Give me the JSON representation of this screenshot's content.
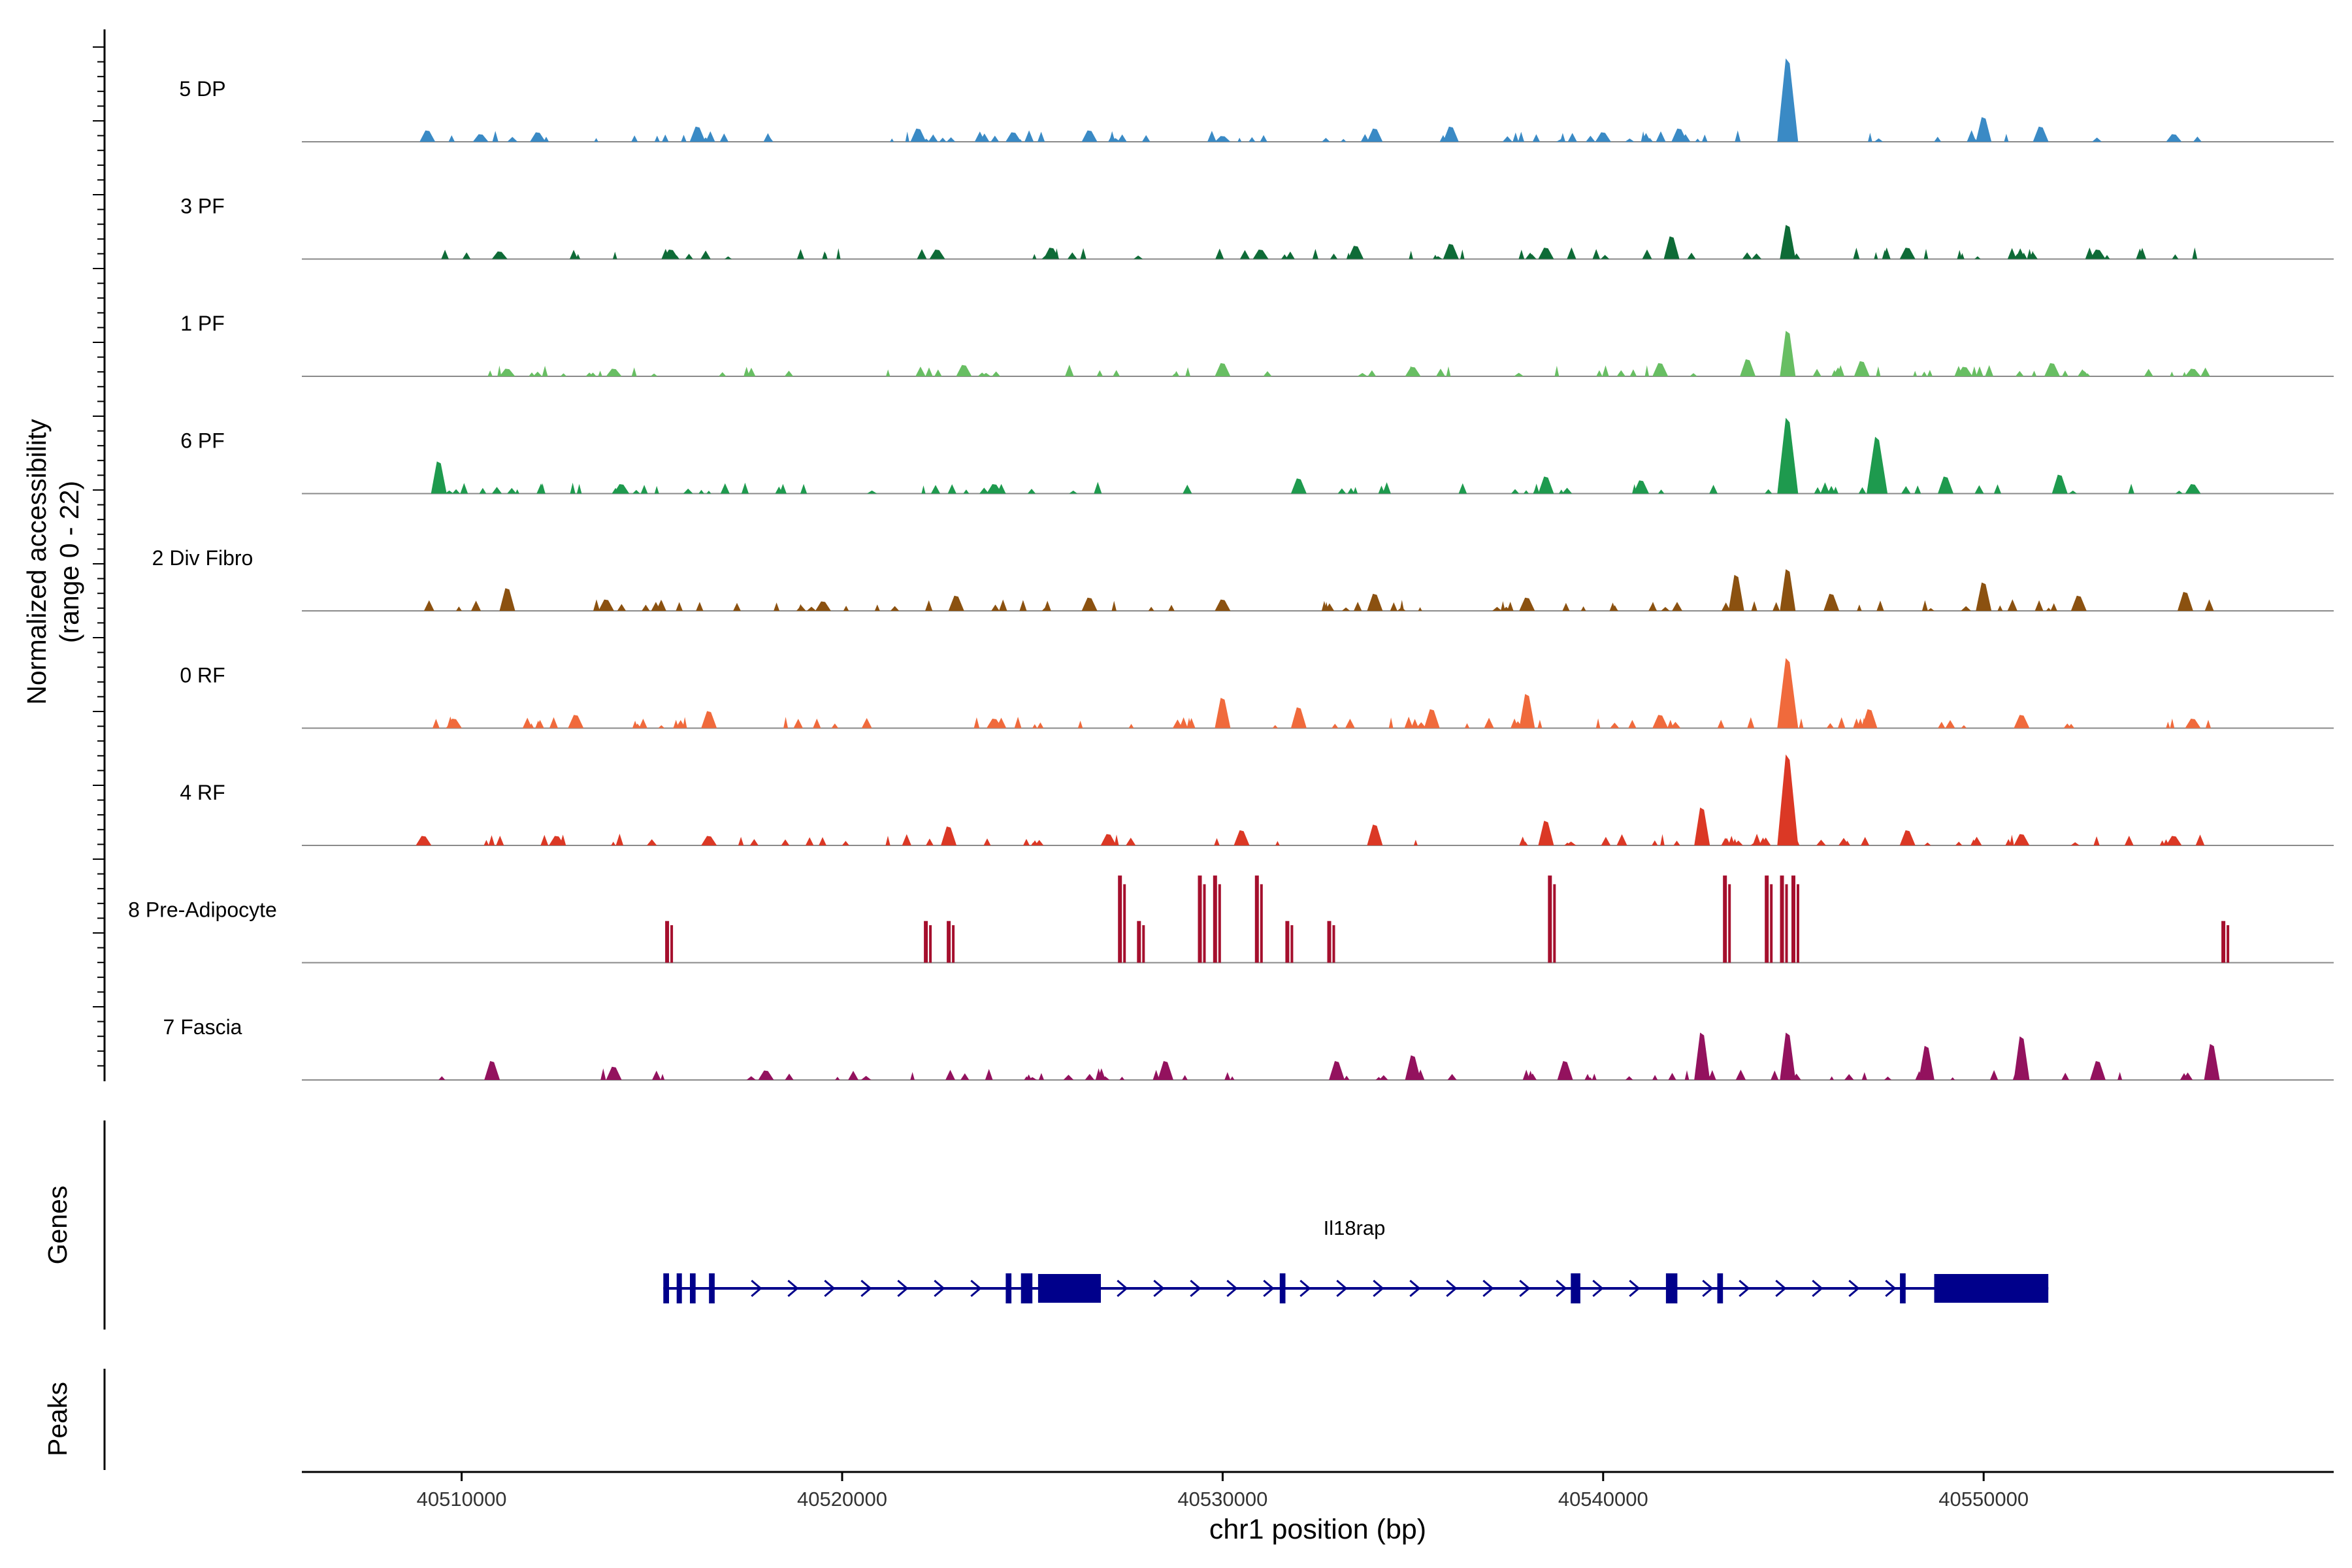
{
  "chart_data": {
    "type": "coverage-track",
    "xlabel": "chr1 position (bp)",
    "ylabel_line1": "Normalized accessibility",
    "ylabel_line2": "(range 0 - 22)",
    "y_range": [
      0,
      22
    ],
    "x_range": [
      40505800,
      40559200
    ],
    "x_ticks": [
      40510000,
      40520000,
      40530000,
      40540000,
      40550000
    ],
    "x_tick_labels": [
      "40510000",
      "40520000",
      "40530000",
      "40540000",
      "40550000"
    ],
    "tracks": [
      {
        "label": "5 DP",
        "color": "#3A8AC5",
        "peaks": [
          {
            "pos": 40509100,
            "height": 0.12
          },
          {
            "pos": 40510500,
            "height": 0.08
          },
          {
            "pos": 40512000,
            "height": 0.1
          },
          {
            "pos": 40516200,
            "height": 0.16
          },
          {
            "pos": 40522000,
            "height": 0.14
          },
          {
            "pos": 40524500,
            "height": 0.1
          },
          {
            "pos": 40526500,
            "height": 0.12
          },
          {
            "pos": 40530000,
            "height": 0.06
          },
          {
            "pos": 40534000,
            "height": 0.14
          },
          {
            "pos": 40536000,
            "height": 0.16
          },
          {
            "pos": 40540000,
            "height": 0.1
          },
          {
            "pos": 40542000,
            "height": 0.14
          },
          {
            "pos": 40544850,
            "height": 0.88
          },
          {
            "pos": 40550000,
            "height": 0.26
          },
          {
            "pos": 40551500,
            "height": 0.16
          },
          {
            "pos": 40555000,
            "height": 0.08
          }
        ]
      },
      {
        "label": "3 PF",
        "color": "#0E6B37",
        "peaks": [
          {
            "pos": 40511000,
            "height": 0.08
          },
          {
            "pos": 40515500,
            "height": 0.1
          },
          {
            "pos": 40522500,
            "height": 0.1
          },
          {
            "pos": 40525500,
            "height": 0.12
          },
          {
            "pos": 40531000,
            "height": 0.1
          },
          {
            "pos": 40533500,
            "height": 0.14
          },
          {
            "pos": 40536000,
            "height": 0.16
          },
          {
            "pos": 40538500,
            "height": 0.12
          },
          {
            "pos": 40541800,
            "height": 0.24
          },
          {
            "pos": 40544850,
            "height": 0.36
          },
          {
            "pos": 40548000,
            "height": 0.12
          },
          {
            "pos": 40553000,
            "height": 0.1
          }
        ]
      },
      {
        "label": "1 PF",
        "color": "#68BE63",
        "peaks": [
          {
            "pos": 40511200,
            "height": 0.08
          },
          {
            "pos": 40514000,
            "height": 0.08
          },
          {
            "pos": 40523200,
            "height": 0.12
          },
          {
            "pos": 40530000,
            "height": 0.14
          },
          {
            "pos": 40535000,
            "height": 0.1
          },
          {
            "pos": 40541500,
            "height": 0.14
          },
          {
            "pos": 40543800,
            "height": 0.18
          },
          {
            "pos": 40544850,
            "height": 0.48
          },
          {
            "pos": 40546800,
            "height": 0.16
          },
          {
            "pos": 40549500,
            "height": 0.1
          },
          {
            "pos": 40551800,
            "height": 0.14
          },
          {
            "pos": 40555500,
            "height": 0.08
          }
        ]
      },
      {
        "label": "6 PF",
        "color": "#1E9A4E",
        "peaks": [
          {
            "pos": 40509400,
            "height": 0.34
          },
          {
            "pos": 40514200,
            "height": 0.1
          },
          {
            "pos": 40524000,
            "height": 0.1
          },
          {
            "pos": 40532000,
            "height": 0.16
          },
          {
            "pos": 40538500,
            "height": 0.18
          },
          {
            "pos": 40541000,
            "height": 0.14
          },
          {
            "pos": 40544850,
            "height": 0.8
          },
          {
            "pos": 40547200,
            "height": 0.6
          },
          {
            "pos": 40549000,
            "height": 0.18
          },
          {
            "pos": 40552000,
            "height": 0.2
          },
          {
            "pos": 40555500,
            "height": 0.1
          }
        ]
      },
      {
        "label": "2 Div Fibro",
        "color": "#8B5110",
        "peaks": [
          {
            "pos": 40511200,
            "height": 0.24
          },
          {
            "pos": 40513800,
            "height": 0.12
          },
          {
            "pos": 40519500,
            "height": 0.1
          },
          {
            "pos": 40523000,
            "height": 0.16
          },
          {
            "pos": 40526500,
            "height": 0.14
          },
          {
            "pos": 40530000,
            "height": 0.12
          },
          {
            "pos": 40534000,
            "height": 0.18
          },
          {
            "pos": 40538000,
            "height": 0.14
          },
          {
            "pos": 40543500,
            "height": 0.38
          },
          {
            "pos": 40544850,
            "height": 0.44
          },
          {
            "pos": 40546000,
            "height": 0.18
          },
          {
            "pos": 40550000,
            "height": 0.3
          },
          {
            "pos": 40552500,
            "height": 0.16
          },
          {
            "pos": 40555300,
            "height": 0.2
          }
        ]
      },
      {
        "label": "0 RF",
        "color": "#F06A3C",
        "peaks": [
          {
            "pos": 40509800,
            "height": 0.1
          },
          {
            "pos": 40513000,
            "height": 0.14
          },
          {
            "pos": 40516500,
            "height": 0.18
          },
          {
            "pos": 40524000,
            "height": 0.1
          },
          {
            "pos": 40530000,
            "height": 0.32
          },
          {
            "pos": 40532000,
            "height": 0.22
          },
          {
            "pos": 40535500,
            "height": 0.2
          },
          {
            "pos": 40538000,
            "height": 0.36
          },
          {
            "pos": 40541500,
            "height": 0.14
          },
          {
            "pos": 40544850,
            "height": 0.74
          },
          {
            "pos": 40547000,
            "height": 0.2
          },
          {
            "pos": 40551000,
            "height": 0.14
          },
          {
            "pos": 40555500,
            "height": 0.1
          }
        ]
      },
      {
        "label": "4 RF",
        "color": "#DB3825",
        "peaks": [
          {
            "pos": 40509000,
            "height": 0.1
          },
          {
            "pos": 40512500,
            "height": 0.1
          },
          {
            "pos": 40516500,
            "height": 0.1
          },
          {
            "pos": 40522800,
            "height": 0.2
          },
          {
            "pos": 40527000,
            "height": 0.12
          },
          {
            "pos": 40530500,
            "height": 0.16
          },
          {
            "pos": 40534000,
            "height": 0.22
          },
          {
            "pos": 40538500,
            "height": 0.26
          },
          {
            "pos": 40542600,
            "height": 0.4
          },
          {
            "pos": 40544850,
            "height": 0.96
          },
          {
            "pos": 40548000,
            "height": 0.16
          },
          {
            "pos": 40551000,
            "height": 0.12
          },
          {
            "pos": 40555000,
            "height": 0.1
          }
        ]
      },
      {
        "label": "8 Pre-Adipocyte",
        "color": "#A50F2D",
        "peaks": [
          {
            "pos": 40515400,
            "height": 0.44
          },
          {
            "pos": 40522200,
            "height": 0.44
          },
          {
            "pos": 40522800,
            "height": 0.44
          },
          {
            "pos": 40527300,
            "height": 0.92
          },
          {
            "pos": 40527800,
            "height": 0.44
          },
          {
            "pos": 40529400,
            "height": 0.92
          },
          {
            "pos": 40529800,
            "height": 0.92
          },
          {
            "pos": 40530900,
            "height": 0.92
          },
          {
            "pos": 40531700,
            "height": 0.44
          },
          {
            "pos": 40532800,
            "height": 0.44
          },
          {
            "pos": 40538600,
            "height": 0.92
          },
          {
            "pos": 40543200,
            "height": 0.92
          },
          {
            "pos": 40544300,
            "height": 0.92
          },
          {
            "pos": 40544700,
            "height": 0.92
          },
          {
            "pos": 40545000,
            "height": 0.92
          },
          {
            "pos": 40556300,
            "height": 0.44
          }
        ]
      },
      {
        "label": "7 Fascia",
        "color": "#93125E",
        "peaks": [
          {
            "pos": 40510800,
            "height": 0.2
          },
          {
            "pos": 40514000,
            "height": 0.14
          },
          {
            "pos": 40518000,
            "height": 0.1
          },
          {
            "pos": 40528500,
            "height": 0.2
          },
          {
            "pos": 40533000,
            "height": 0.2
          },
          {
            "pos": 40535000,
            "height": 0.26
          },
          {
            "pos": 40539000,
            "height": 0.2
          },
          {
            "pos": 40542600,
            "height": 0.5
          },
          {
            "pos": 40544850,
            "height": 0.5
          },
          {
            "pos": 40548500,
            "height": 0.36
          },
          {
            "pos": 40551000,
            "height": 0.46
          },
          {
            "pos": 40553000,
            "height": 0.2
          },
          {
            "pos": 40556000,
            "height": 0.38
          }
        ]
      }
    ],
    "genes_label": "Genes",
    "peaks_label": "Peaks",
    "gene": {
      "name": "Il18rap",
      "start": 40515300,
      "end": 40551700,
      "strand": "+",
      "color": "#00008B",
      "exons": [
        {
          "start": 40515300,
          "end": 40515450
        },
        {
          "start": 40515650,
          "end": 40515780
        },
        {
          "start": 40516000,
          "end": 40516150
        },
        {
          "start": 40516500,
          "end": 40516650
        },
        {
          "start": 40524300,
          "end": 40524450
        },
        {
          "start": 40524700,
          "end": 40525000
        },
        {
          "start": 40525150,
          "end": 40526800
        },
        {
          "start": 40531500,
          "end": 40531650
        },
        {
          "start": 40539150,
          "end": 40539400
        },
        {
          "start": 40541650,
          "end": 40541950
        },
        {
          "start": 40543000,
          "end": 40543150
        },
        {
          "start": 40547800,
          "end": 40547950
        },
        {
          "start": 40548700,
          "end": 40551700
        }
      ]
    }
  }
}
